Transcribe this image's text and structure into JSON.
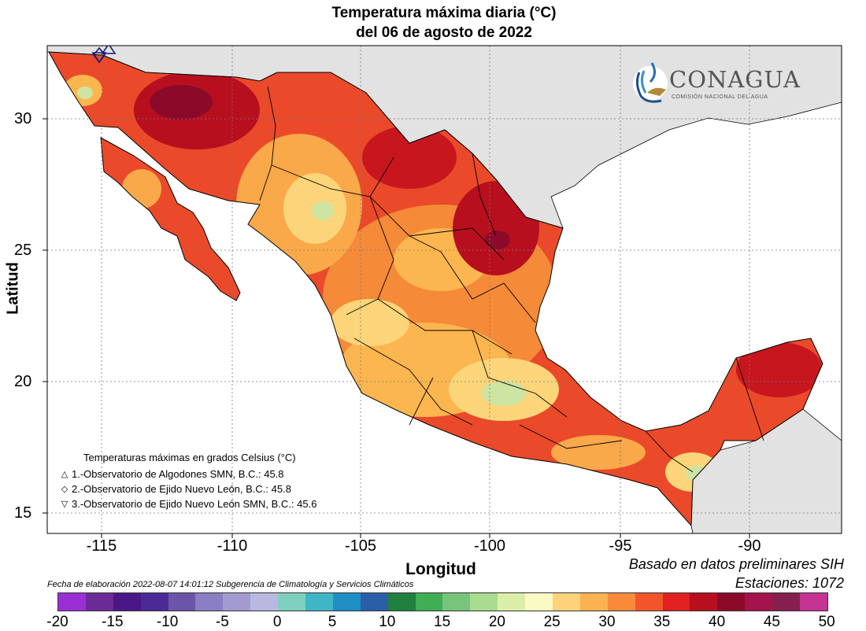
{
  "title": {
    "line1": "Temperatura máxima diaria (°C)",
    "line2": "del 06 de agosto de 2022"
  },
  "axes": {
    "x_label": "Longitud",
    "y_label": "Latitud",
    "x_ticks": [
      "-115",
      "-110",
      "-105",
      "-100",
      "-95",
      "-90"
    ],
    "y_ticks": [
      "30",
      "25",
      "20",
      "15"
    ],
    "lon_range": [
      -117.2,
      -85.8
    ],
    "lat_range": [
      14.0,
      32.8
    ]
  },
  "logo": {
    "name": "CONAGUA",
    "subtitle": "COMISIÓN NACIONAL DEL AGUA"
  },
  "legend": {
    "title": "Temperaturas máximas en grados Celsius (°C)",
    "items": [
      {
        "symbol": "△",
        "text": "1.-Observatorio de Algodones SMN, B.C.: 45.8"
      },
      {
        "symbol": "◇",
        "text": "2.-Observatorio de Ejido Nuevo León, B.C.: 45.8"
      },
      {
        "symbol": "▽",
        "text": "3.-Observatorio de Ejido Nuevo León SMN, B.C.: 45.6"
      }
    ]
  },
  "footer": {
    "basis": "Basado en datos preliminares SIH",
    "stations": "Estaciones:  1072",
    "credit": "Fecha de elaboración 2022-08-07 14:01:12 Subgerencia de Climatología y Servicios Climáticos"
  },
  "colorbar": {
    "ticks": [
      "-20",
      "-15",
      "-10",
      "-5",
      "0",
      "5",
      "10",
      "15",
      "20",
      "25",
      "30",
      "35",
      "40",
      "45",
      "50"
    ],
    "colors": [
      "#9a2fd6",
      "#6b2a95",
      "#4a1786",
      "#4a2b96",
      "#6a55a8",
      "#8a7fc2",
      "#a29bd0",
      "#b8b8e0",
      "#7fd0bf",
      "#3fb5c6",
      "#1e8ec5",
      "#2a5fa8",
      "#1f8040",
      "#3fae55",
      "#76c57a",
      "#a9dc8f",
      "#dbeea8",
      "#fafac4",
      "#fdd27a",
      "#fcb250",
      "#f98a3a",
      "#f2552a",
      "#e0211f",
      "#b80f1f",
      "#8b0a2a",
      "#a4134b",
      "#85204e",
      "#c43392"
    ]
  },
  "colors": {
    "land_outside": "#e2e2e2",
    "ocean": "#ffffff",
    "hot_dark": "#8b0a2a",
    "hot": "#d8221e",
    "warm": "#f4742f",
    "mild": "#fcb64f",
    "cool": "#f6e59a",
    "cooler": "#cde4a2",
    "grid": "#777777"
  }
}
